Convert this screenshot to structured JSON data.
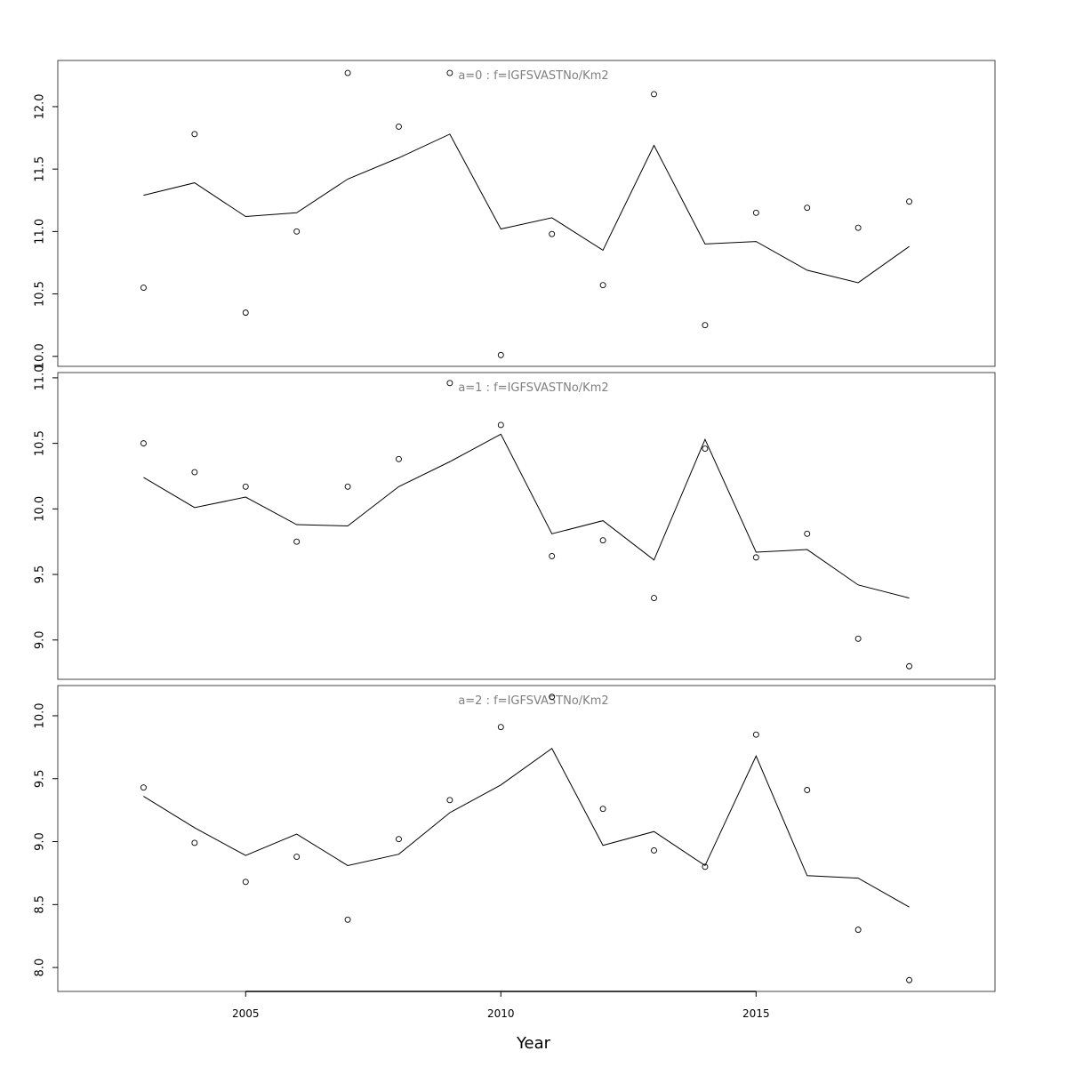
{
  "chart_data": [
    {
      "type": "line",
      "title": "a=0 : f=IGFSVASTNo/Km2",
      "x": [
        2003,
        2004,
        2005,
        2006,
        2007,
        2008,
        2009,
        2010,
        2011,
        2012,
        2013,
        2014,
        2015,
        2016,
        2017,
        2018
      ],
      "series": [
        {
          "kind": "line",
          "values": [
            11.29,
            11.39,
            11.12,
            11.15,
            11.42,
            11.59,
            11.78,
            11.02,
            11.11,
            10.85,
            11.69,
            10.9,
            10.92,
            10.69,
            10.59,
            10.88
          ]
        },
        {
          "kind": "points",
          "values": [
            10.55,
            11.78,
            10.35,
            11.0,
            12.27,
            11.84,
            12.27,
            10.01,
            10.98,
            10.57,
            12.1,
            10.25,
            11.15,
            11.19,
            11.03,
            11.24
          ]
        }
      ],
      "yticks": [
        10.0,
        10.5,
        11.0,
        11.5,
        12.0
      ],
      "ytick_labels": [
        "10.0",
        "10.5",
        "11.0",
        "11.5",
        "12.0"
      ],
      "ylim": [
        9.92,
        12.37
      ],
      "xlim": [
        2001.32,
        2019.68
      ]
    },
    {
      "type": "line",
      "title": "a=1 : f=IGFSVASTNo/Km2",
      "x": [
        2003,
        2004,
        2005,
        2006,
        2007,
        2008,
        2009,
        2010,
        2011,
        2012,
        2013,
        2014,
        2015,
        2016,
        2017,
        2018
      ],
      "series": [
        {
          "kind": "line",
          "values": [
            10.24,
            10.01,
            10.09,
            9.88,
            9.87,
            10.17,
            10.36,
            10.57,
            9.81,
            9.91,
            9.61,
            10.53,
            9.67,
            9.69,
            9.42,
            9.32
          ]
        },
        {
          "kind": "points",
          "values": [
            10.5,
            10.28,
            10.17,
            9.75,
            10.17,
            10.38,
            10.96,
            10.64,
            9.64,
            9.76,
            9.32,
            10.46,
            9.63,
            9.81,
            9.01,
            8.8
          ]
        }
      ],
      "yticks": [
        9.0,
        9.5,
        10.0,
        10.5,
        11.0
      ],
      "ytick_labels": [
        "9.0",
        "9.5",
        "10.0",
        "10.5",
        "11.0"
      ],
      "ylim": [
        8.7,
        11.04
      ],
      "xlim": [
        2001.32,
        2019.68
      ]
    },
    {
      "type": "line",
      "title": "a=2 : f=IGFSVASTNo/Km2",
      "x": [
        2003,
        2004,
        2005,
        2006,
        2007,
        2008,
        2009,
        2010,
        2011,
        2012,
        2013,
        2014,
        2015,
        2016,
        2017,
        2018
      ],
      "series": [
        {
          "kind": "line",
          "values": [
            9.36,
            9.11,
            8.89,
            9.06,
            8.81,
            8.9,
            9.23,
            9.45,
            9.74,
            8.97,
            9.08,
            8.81,
            9.68,
            8.73,
            8.71,
            8.48
          ]
        },
        {
          "kind": "points",
          "values": [
            9.43,
            8.99,
            8.68,
            8.88,
            8.38,
            9.02,
            9.33,
            9.91,
            10.15,
            9.26,
            8.93,
            8.8,
            9.85,
            9.41,
            8.3,
            7.9
          ]
        }
      ],
      "yticks": [
        8.0,
        8.5,
        9.0,
        9.5,
        10.0
      ],
      "ytick_labels": [
        "8.0",
        "8.5",
        "9.0",
        "9.5",
        "10.0"
      ],
      "ylim": [
        7.81,
        10.24
      ],
      "xlim": [
        2001.32,
        2019.68
      ]
    }
  ],
  "x_axis": {
    "title": "Year",
    "ticks": [
      2005,
      2010,
      2015
    ],
    "tick_labels": [
      "2005",
      "2010",
      "2015"
    ]
  },
  "colors": {
    "frame": "#444444",
    "line": "#000000",
    "points": "#000000",
    "panel_title": "#808080"
  }
}
